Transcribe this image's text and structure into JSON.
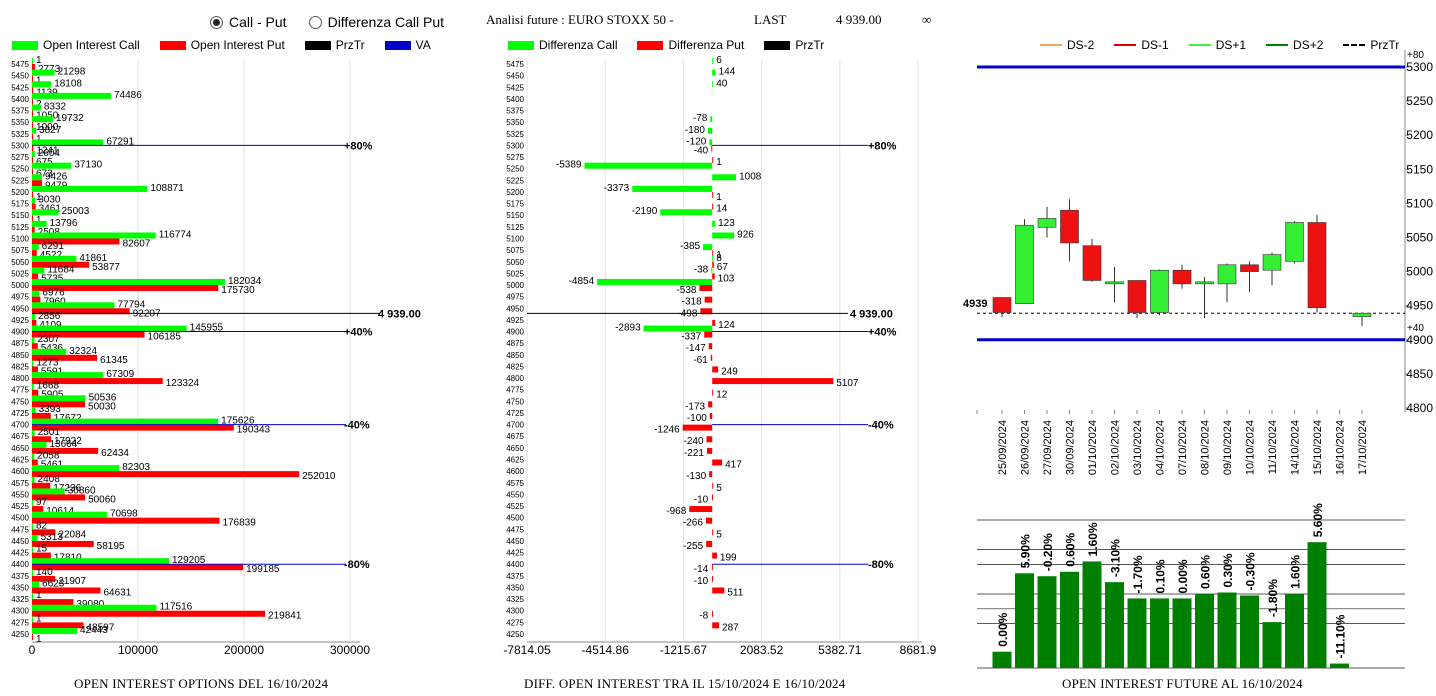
{
  "controls": {
    "option_call_put": "Call - Put",
    "option_diff": "Differenza Call Put",
    "selected": "call_put"
  },
  "header": {
    "title": "Analisi future : EURO STOXX 50 -",
    "last_label": "LAST",
    "last_value": "4 939.00",
    "infinity": "∞"
  },
  "footers": {
    "left": "OPEN INTEREST OPTIONS DEL 16/10/2024",
    "mid": "DIFF. OPEN INTEREST TRA IL 15/10/2024 E 16/10/2024",
    "right": "OPEN INTEREST FUTURE AL 16/10/2024"
  },
  "colors": {
    "green": "#00ff00",
    "red": "#ff0000",
    "blue": "#0000cc",
    "dark_green": "#008000"
  },
  "chart_data": [
    {
      "type": "bar",
      "orientation": "horizontal",
      "legend": [
        "Open Interest Call",
        "Open Interest Put",
        "PrzTr",
        "VA"
      ],
      "xlim": [
        0,
        300000
      ],
      "xticks": [
        "0",
        "100000",
        "200000",
        "300000"
      ],
      "strikes": [
        5475,
        5450,
        5425,
        5400,
        5375,
        5350,
        5325,
        5300,
        5275,
        5250,
        5225,
        5200,
        5175,
        5150,
        5125,
        5100,
        5075,
        5050,
        5025,
        5000,
        4975,
        4950,
        4925,
        4900,
        4875,
        4850,
        4825,
        4800,
        4775,
        4750,
        4725,
        4700,
        4675,
        4650,
        4625,
        4600,
        4575,
        4550,
        4525,
        4500,
        4475,
        4450,
        4425,
        4400,
        4375,
        4350,
        4325,
        4300,
        4275,
        4250
      ],
      "call": [
        1,
        21298,
        18108,
        74486,
        8332,
        19732,
        3827,
        67291,
        2604,
        37130,
        9426,
        108871,
        3030,
        25003,
        13796,
        116774,
        6291,
        41861,
        11684,
        182034,
        6976,
        77794,
        2856,
        145955,
        2307,
        32324,
        1273,
        67309,
        1668,
        50536,
        3393,
        175626,
        2501,
        13664,
        2058,
        82303,
        2408,
        30860,
        97,
        70698,
        82,
        5313,
        15,
        129205,
        140,
        6623,
        1,
        117516,
        1,
        42443
      ],
      "put": [
        2773,
        1,
        1139,
        2,
        1050,
        1000,
        1,
        1241,
        675,
        673,
        9479,
        1,
        3461,
        1,
        2508,
        82607,
        4522,
        53877,
        5735,
        175730,
        7960,
        92207,
        4109,
        106185,
        5436,
        61345,
        5591,
        123324,
        5905,
        50030,
        17672,
        190343,
        17922,
        62434,
        5461,
        252010,
        17236,
        50060,
        10614,
        176839,
        22084,
        58195,
        17810,
        199185,
        21907,
        64631,
        39080,
        219841,
        48597,
        1
      ],
      "price_level": {
        "value": 4939,
        "label": "4 939.00"
      },
      "va_levels": [
        {
          "strike": 5300,
          "label": "+80%"
        },
        {
          "strike": 4900,
          "label": "+40%"
        },
        {
          "strike": 4700,
          "label": "-40%"
        },
        {
          "strike": 4400,
          "label": "-80%"
        }
      ]
    },
    {
      "type": "bar",
      "orientation": "horizontal",
      "legend": [
        "Differenza Call",
        "Differenza Put",
        "PrzTr"
      ],
      "xlim": [
        -7814.05,
        8681.9
      ],
      "xticks": [
        "-7814.05",
        "-4514.86",
        "-1215.67",
        "2083.52",
        "5382.71",
        "8681.9"
      ],
      "call_diff": [
        6,
        144,
        40,
        0,
        0,
        -78,
        -180,
        -120,
        0,
        -5389,
        1008,
        -3373,
        0,
        -2190,
        123,
        926,
        -385,
        8,
        -38,
        -4854,
        0,
        0,
        0,
        -2893,
        0,
        0,
        0,
        0,
        0,
        0,
        0,
        0,
        0,
        0,
        0,
        0,
        0,
        0,
        0,
        0,
        0,
        0,
        0,
        0,
        0,
        0,
        0,
        0,
        0,
        0
      ],
      "put_diff": [
        0,
        0,
        0,
        0,
        0,
        0,
        0,
        -40,
        1,
        0,
        0,
        1,
        14,
        0,
        0,
        0,
        1,
        67,
        103,
        -538,
        -318,
        -498,
        124,
        -337,
        -147,
        -61,
        249,
        5107,
        12,
        -173,
        -100,
        -1246,
        -240,
        -221,
        417,
        -130,
        5,
        -10,
        -968,
        -266,
        5,
        -255,
        199,
        -14,
        -10,
        511,
        0,
        -8,
        287,
        0
      ],
      "price_level": {
        "value": 4939,
        "label": "4 939.00"
      },
      "va_levels": [
        {
          "strike": 5300,
          "label": "+80%"
        },
        {
          "strike": 4900,
          "label": "+40%"
        },
        {
          "strike": 4700,
          "label": "-40%"
        },
        {
          "strike": 4400,
          "label": "-80%"
        }
      ]
    },
    {
      "type": "candlestick",
      "legend": [
        "DS-2",
        "DS-1",
        "DS+1",
        "DS+2",
        "PrzTr"
      ],
      "ylim": [
        4800,
        5320
      ],
      "yticks": [
        "5300",
        "5250",
        "5200",
        "5150",
        "5100",
        "5050",
        "5000",
        "4950",
        "4900",
        "4850",
        "4800"
      ],
      "bands": [
        {
          "value": 5300,
          "label": "+80"
        },
        {
          "value": 4900,
          "label": "+40"
        }
      ],
      "price_level": {
        "value": 4939,
        "label": "4939"
      },
      "candles": [
        {
          "date": "25/09/2024",
          "open": 4962,
          "close": 4940,
          "high": 4962,
          "low": 4933
        },
        {
          "date": "26/09/2024",
          "open": 4953,
          "close": 5068,
          "high": 5077,
          "low": 4953
        },
        {
          "date": "27/09/2024",
          "open": 5065,
          "close": 5078,
          "high": 5095,
          "low": 5050
        },
        {
          "date": "30/09/2024",
          "open": 5090,
          "close": 5042,
          "high": 5106,
          "low": 5015
        },
        {
          "date": "01/10/2024",
          "open": 5038,
          "close": 4987,
          "high": 5048,
          "low": 4985
        },
        {
          "date": "02/10/2024",
          "open": 4985,
          "close": 4985,
          "high": 5007,
          "low": 4955
        },
        {
          "date": "03/10/2024",
          "open": 4987,
          "close": 4940,
          "high": 4987,
          "low": 4932
        },
        {
          "date": "04/10/2024",
          "open": 4940,
          "close": 5002,
          "high": 5003,
          "low": 4936
        },
        {
          "date": "07/10/2024",
          "open": 5002,
          "close": 4982,
          "high": 5010,
          "low": 4975
        },
        {
          "date": "08/10/2024",
          "open": 4985,
          "close": 4985,
          "high": 4992,
          "low": 4932
        },
        {
          "date": "09/10/2024",
          "open": 4982,
          "close": 5010,
          "high": 5012,
          "low": 4955
        },
        {
          "date": "10/10/2024",
          "open": 5010,
          "close": 5000,
          "high": 5015,
          "low": 4970
        },
        {
          "date": "11/10/2024",
          "open": 5002,
          "close": 5025,
          "high": 5028,
          "low": 4980
        },
        {
          "date": "14/10/2024",
          "open": 5015,
          "close": 5072,
          "high": 5074,
          "low": 5012
        },
        {
          "date": "15/10/2024",
          "open": 5072,
          "close": 4947,
          "high": 5083,
          "low": 4940
        },
        {
          "date": "16/10/2024",
          "open": null,
          "close": null,
          "high": null,
          "low": null
        },
        {
          "date": "17/10/2024",
          "open": 4934,
          "close": 4939,
          "high": 4940,
          "low": 4920
        }
      ]
    },
    {
      "type": "bar",
      "categories": [
        "25/09/2024",
        "26/09/2024",
        "27/09/2024",
        "30/09/2024",
        "01/10/2024",
        "02/10/2024",
        "03/10/2024",
        "04/10/2024",
        "07/10/2024",
        "08/10/2024",
        "09/10/2024",
        "10/10/2024",
        "11/10/2024",
        "14/10/2024",
        "15/10/2024",
        "16/10/2024"
      ],
      "values": [
        11,
        64,
        62,
        65,
        72,
        58,
        47,
        47,
        47,
        50,
        51,
        49,
        31,
        50,
        85,
        3
      ],
      "labels": [
        "0.00%",
        "5.90%",
        "-0.20%",
        "0.60%",
        "1.60%",
        "-3.10%",
        "-1.70%",
        "0.10%",
        "0.00%",
        "0.60%",
        "0.30%",
        "-0.30%",
        "-1.80%",
        "1.60%",
        "5.60%",
        "-11.10%"
      ]
    }
  ]
}
